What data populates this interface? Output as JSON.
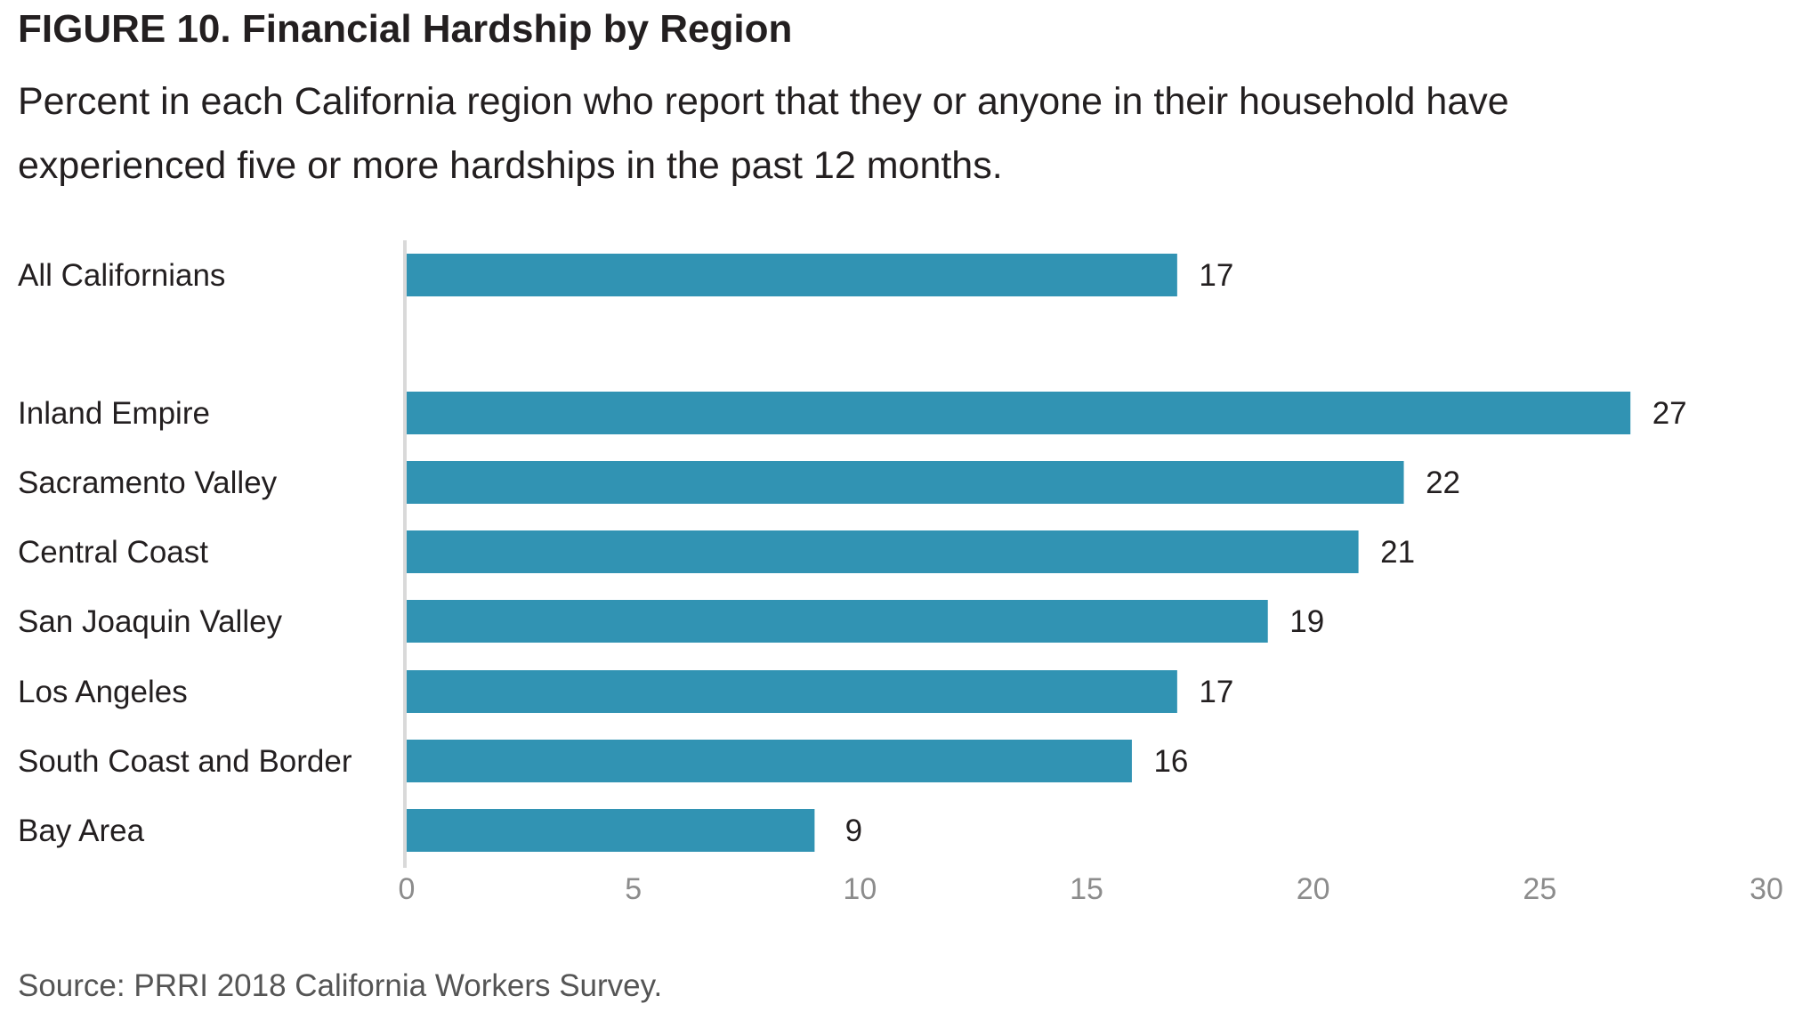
{
  "figure": {
    "title": "FIGURE 10. Financial Hardship by Region",
    "subtitle": "Percent in each California region who report that they or anyone in their household have experienced five or more hardships in the past 12 months.",
    "source": "Source: PRRI 2018 California Workers Survey."
  },
  "chart_data": {
    "type": "bar",
    "orientation": "horizontal",
    "title": "FIGURE 10. Financial Hardship by Region",
    "subtitle": "Percent in each California region who report that they or anyone in their household have experienced five or more hardships in the past 12 months.",
    "xlabel": "",
    "ylabel": "",
    "categories": [
      "All Californians",
      "Inland Empire",
      "Sacramento Valley",
      "Central Coast",
      "San Joaquin Valley",
      "Los Angeles",
      "South Coast and Border",
      "Bay Area"
    ],
    "values": [
      17,
      27,
      22,
      21,
      19,
      17,
      16,
      9
    ],
    "data_labels": [
      "17",
      "27",
      "22",
      "21",
      "19",
      "17",
      "16",
      "9"
    ],
    "xlim": [
      0,
      30
    ],
    "x_ticks": [
      0,
      5,
      10,
      15,
      20,
      25,
      30
    ],
    "grid": false,
    "legend": "none",
    "bar_color": "#3193b3"
  }
}
